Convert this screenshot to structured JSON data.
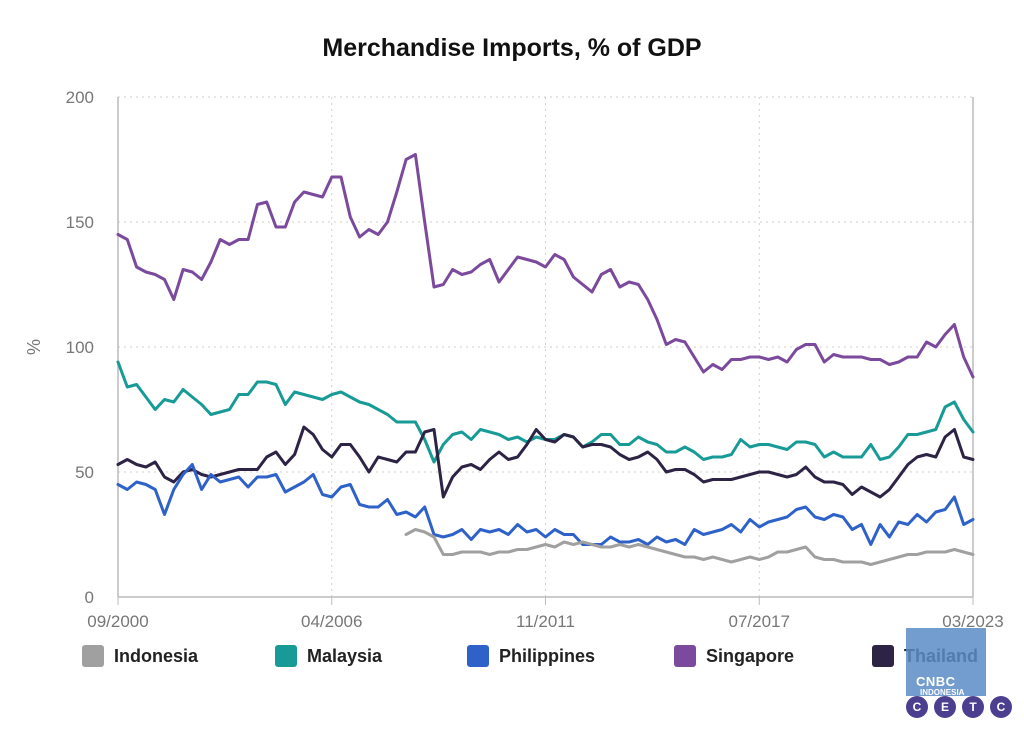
{
  "chart_data": {
    "type": "line",
    "title": "Merchandise Imports, % of GDP",
    "ylabel": "%",
    "ylim": [
      0,
      200
    ],
    "yticks": [
      "0",
      "50",
      "100",
      "150",
      "200"
    ],
    "x_tick_labels": [
      "09/2000",
      "04/2006",
      "11/2011",
      "07/2017",
      "03/2023"
    ],
    "x_range": [
      "09/2000",
      "03/2023"
    ],
    "grid": true,
    "legend_position": "bottom",
    "series": [
      {
        "name": "Singapore",
        "color": "#7b4a9c",
        "start": 0,
        "values": [
          145,
          143,
          132,
          130,
          129,
          127,
          119,
          131,
          130,
          127,
          134,
          143,
          141,
          143,
          143,
          157,
          158,
          148,
          148,
          158,
          162,
          161,
          160,
          168,
          168,
          152,
          144,
          147,
          145,
          150,
          162,
          175,
          177,
          150,
          124,
          125,
          131,
          129,
          130,
          133,
          135,
          126,
          131,
          136,
          135,
          134,
          132,
          137,
          135,
          128,
          125,
          122,
          129,
          131,
          124,
          126,
          125,
          119,
          111,
          101,
          103,
          102,
          96,
          90,
          93,
          91,
          95,
          95,
          96,
          96,
          95,
          96,
          94,
          99,
          101,
          101,
          94,
          97,
          96,
          96,
          96,
          95,
          95,
          93,
          94,
          96,
          96,
          102,
          100,
          105,
          109,
          96,
          88
        ]
      },
      {
        "name": "Malaysia",
        "color": "#189b96",
        "start": 0,
        "values": [
          94,
          84,
          85,
          80,
          75,
          79,
          78,
          83,
          80,
          77,
          73,
          74,
          75,
          81,
          81,
          86,
          86,
          85,
          77,
          82,
          81,
          80,
          79,
          81,
          82,
          80,
          78,
          77,
          75,
          73,
          70,
          70,
          70,
          63,
          54,
          61,
          65,
          66,
          63,
          67,
          66,
          65,
          63,
          64,
          62,
          64,
          63,
          63,
          65,
          64,
          60,
          62,
          65,
          65,
          61,
          61,
          64,
          62,
          61,
          58,
          58,
          60,
          58,
          55,
          56,
          56,
          57,
          63,
          60,
          61,
          61,
          60,
          59,
          62,
          62,
          61,
          56,
          58,
          56,
          56,
          56,
          61,
          55,
          56,
          60,
          65,
          65,
          66,
          67,
          76,
          78,
          71,
          66
        ]
      },
      {
        "name": "Thailand",
        "color": "#2d2344",
        "start": 0,
        "values": [
          53,
          55,
          53,
          52,
          54,
          48,
          46,
          50,
          51,
          49,
          48,
          49,
          50,
          51,
          51,
          51,
          56,
          58,
          53,
          57,
          68,
          65,
          59,
          56,
          61,
          61,
          56,
          50,
          56,
          55,
          54,
          58,
          58,
          66,
          67,
          40,
          48,
          52,
          53,
          51,
          55,
          58,
          55,
          56,
          61,
          67,
          63,
          62,
          65,
          64,
          60,
          61,
          61,
          60,
          57,
          55,
          56,
          58,
          55,
          50,
          51,
          51,
          49,
          46,
          47,
          47,
          47,
          48,
          49,
          50,
          50,
          49,
          48,
          49,
          52,
          48,
          46,
          46,
          45,
          41,
          44,
          42,
          40,
          43,
          48,
          53,
          56,
          57,
          56,
          64,
          67,
          56,
          55
        ]
      },
      {
        "name": "Philippines",
        "color": "#2f62c8",
        "start": 0,
        "values": [
          45,
          43,
          46,
          45,
          43,
          33,
          43,
          49,
          53,
          43,
          49,
          46,
          47,
          48,
          44,
          48,
          48,
          49,
          42,
          44,
          46,
          49,
          41,
          40,
          44,
          45,
          37,
          36,
          36,
          39,
          33,
          34,
          32,
          36,
          25,
          24,
          25,
          27,
          23,
          27,
          26,
          27,
          25,
          29,
          26,
          27,
          24,
          27,
          25,
          25,
          21,
          21,
          21,
          24,
          22,
          22,
          23,
          21,
          24,
          22,
          23,
          21,
          27,
          25,
          26,
          27,
          29,
          26,
          31,
          28,
          30,
          31,
          32,
          35,
          36,
          32,
          31,
          33,
          32,
          27,
          29,
          21,
          29,
          24,
          30,
          29,
          33,
          30,
          34,
          35,
          40,
          29,
          31
        ]
      },
      {
        "name": "Indonesia",
        "color": "#a0a0a0",
        "start": 31,
        "values": [
          25,
          27,
          26,
          24,
          17,
          17,
          18,
          18,
          18,
          17,
          18,
          18,
          19,
          19,
          20,
          21,
          20,
          22,
          21,
          22,
          21,
          20,
          20,
          21,
          20,
          21,
          20,
          19,
          18,
          17,
          16,
          16,
          15,
          16,
          15,
          14,
          15,
          16,
          15,
          16,
          18,
          18,
          19,
          20,
          16,
          15,
          15,
          14,
          14,
          14,
          13,
          14,
          15,
          16,
          17,
          17,
          18,
          18,
          18,
          19,
          18,
          17
        ]
      }
    ]
  },
  "logo": {
    "brand": "CNBC",
    "sub": "INDONESIA",
    "letters": [
      "C",
      "E",
      "T",
      "C"
    ]
  }
}
